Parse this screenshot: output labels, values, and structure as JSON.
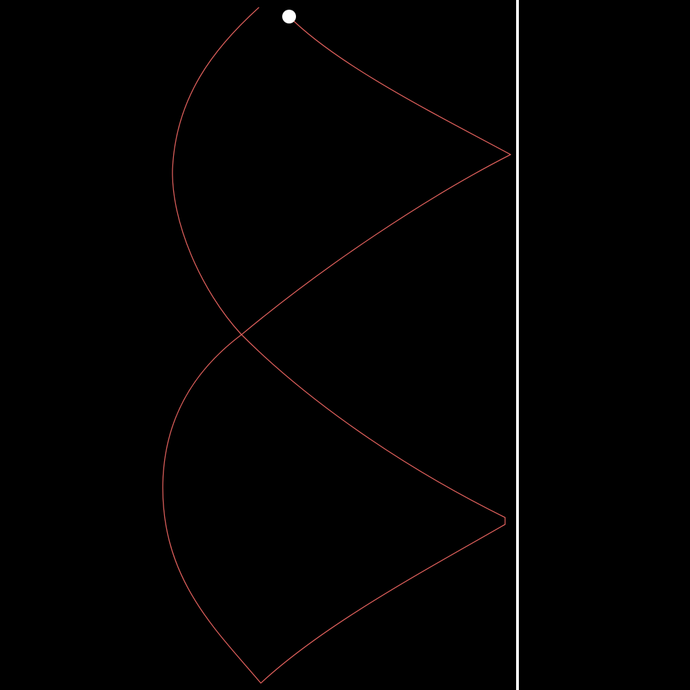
{
  "colors": {
    "background": "#000000",
    "trail": "#e0605c",
    "wall": "#ffffff",
    "ball": "#ffffff"
  },
  "elements": {
    "wall": "vertical-wall",
    "trail": "motion-trail",
    "ball": "ball"
  }
}
